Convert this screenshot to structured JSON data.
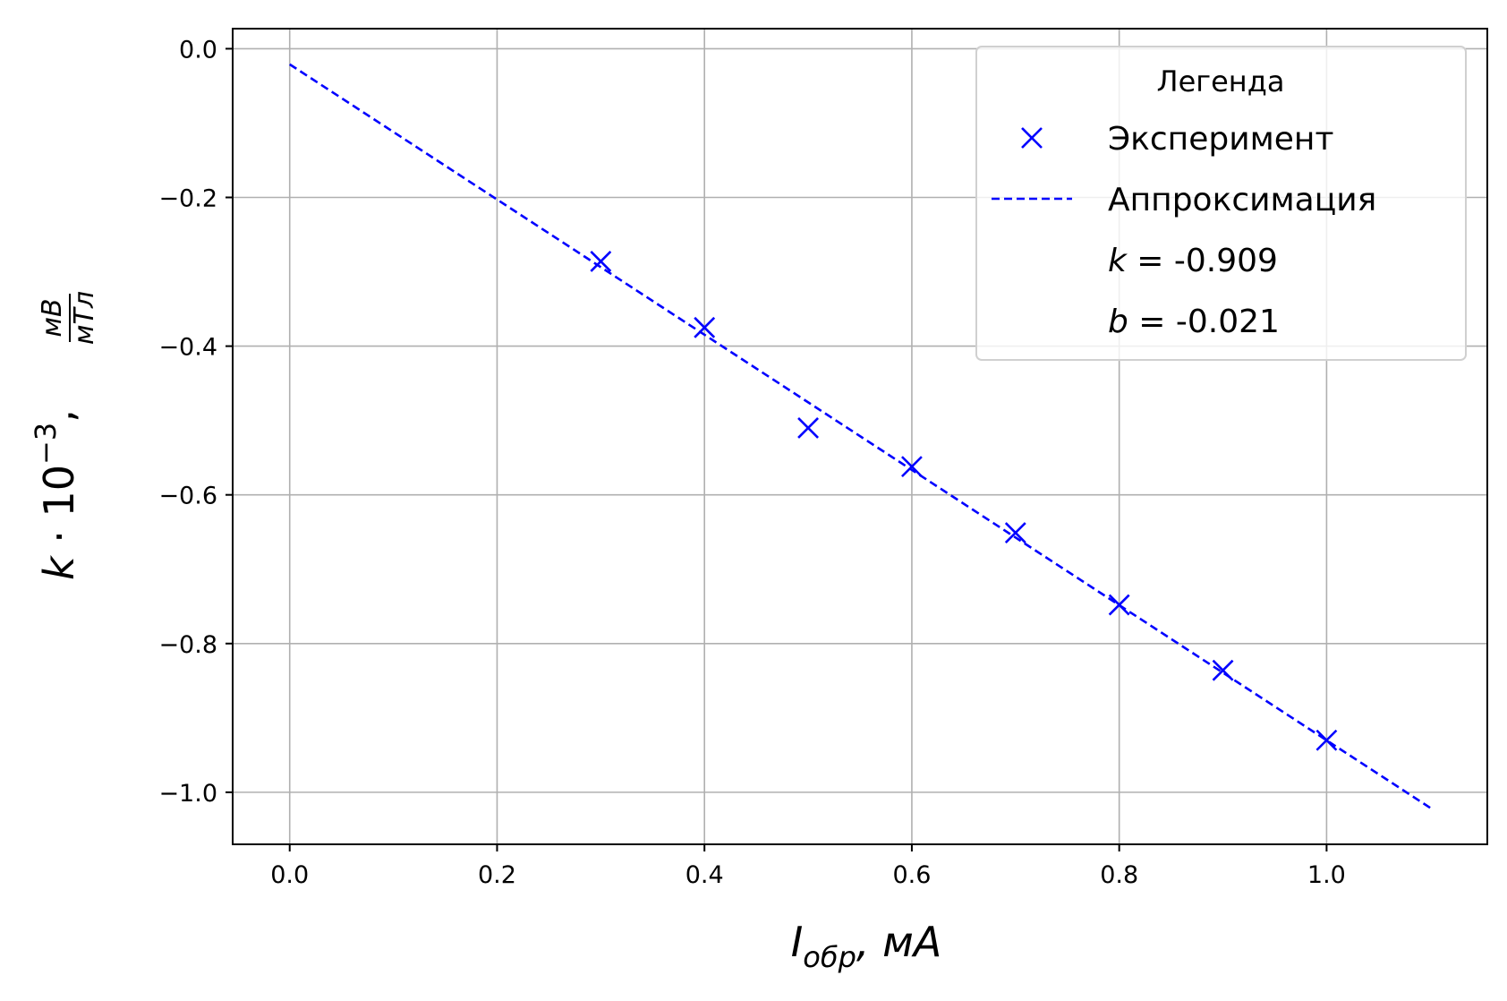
{
  "chart_data": {
    "type": "scatter",
    "xlabel": {
      "main": "I",
      "sub": "обр",
      "unit": ", мА"
    },
    "ylabel": {
      "main": "k",
      "mult": " · 10",
      "exp": "−3",
      "sep": ",",
      "num": "мВ",
      "den": "мТл"
    },
    "xlim": [
      -0.055,
      1.155
    ],
    "ylim": [
      -1.07,
      0.027
    ],
    "x_ticks": [
      0.0,
      0.2,
      0.4,
      0.6,
      0.8,
      1.0
    ],
    "x_tick_labels": [
      "0.0",
      "0.2",
      "0.4",
      "0.6",
      "0.8",
      "1.0"
    ],
    "y_ticks": [
      0.0,
      -0.2,
      -0.4,
      -0.6,
      -0.8,
      -1.0
    ],
    "y_tick_labels": [
      "0.0",
      "−0.2",
      "−0.4",
      "−0.6",
      "−0.8",
      "−1.0"
    ],
    "grid": true,
    "color": "#0000ff",
    "series": [
      {
        "name": "Эксперимент",
        "kind": "scatter",
        "marker": "x",
        "x": [
          0.3,
          0.4,
          0.5,
          0.6,
          0.7,
          0.8,
          0.9,
          1.0
        ],
        "y": [
          -0.286,
          -0.375,
          -0.51,
          -0.562,
          -0.651,
          -0.748,
          -0.836,
          -0.93
        ]
      },
      {
        "name": "Аппроксимация",
        "kind": "line",
        "style": "dashed",
        "x": [
          0.0,
          1.1
        ],
        "y": [
          -0.021,
          -1.021
        ]
      }
    ],
    "legend": {
      "title": "Легенда",
      "position": "top-right",
      "k_label": "k",
      "k_value": " = -0.909",
      "b_label": "b",
      "b_value": " = -0.021"
    }
  }
}
